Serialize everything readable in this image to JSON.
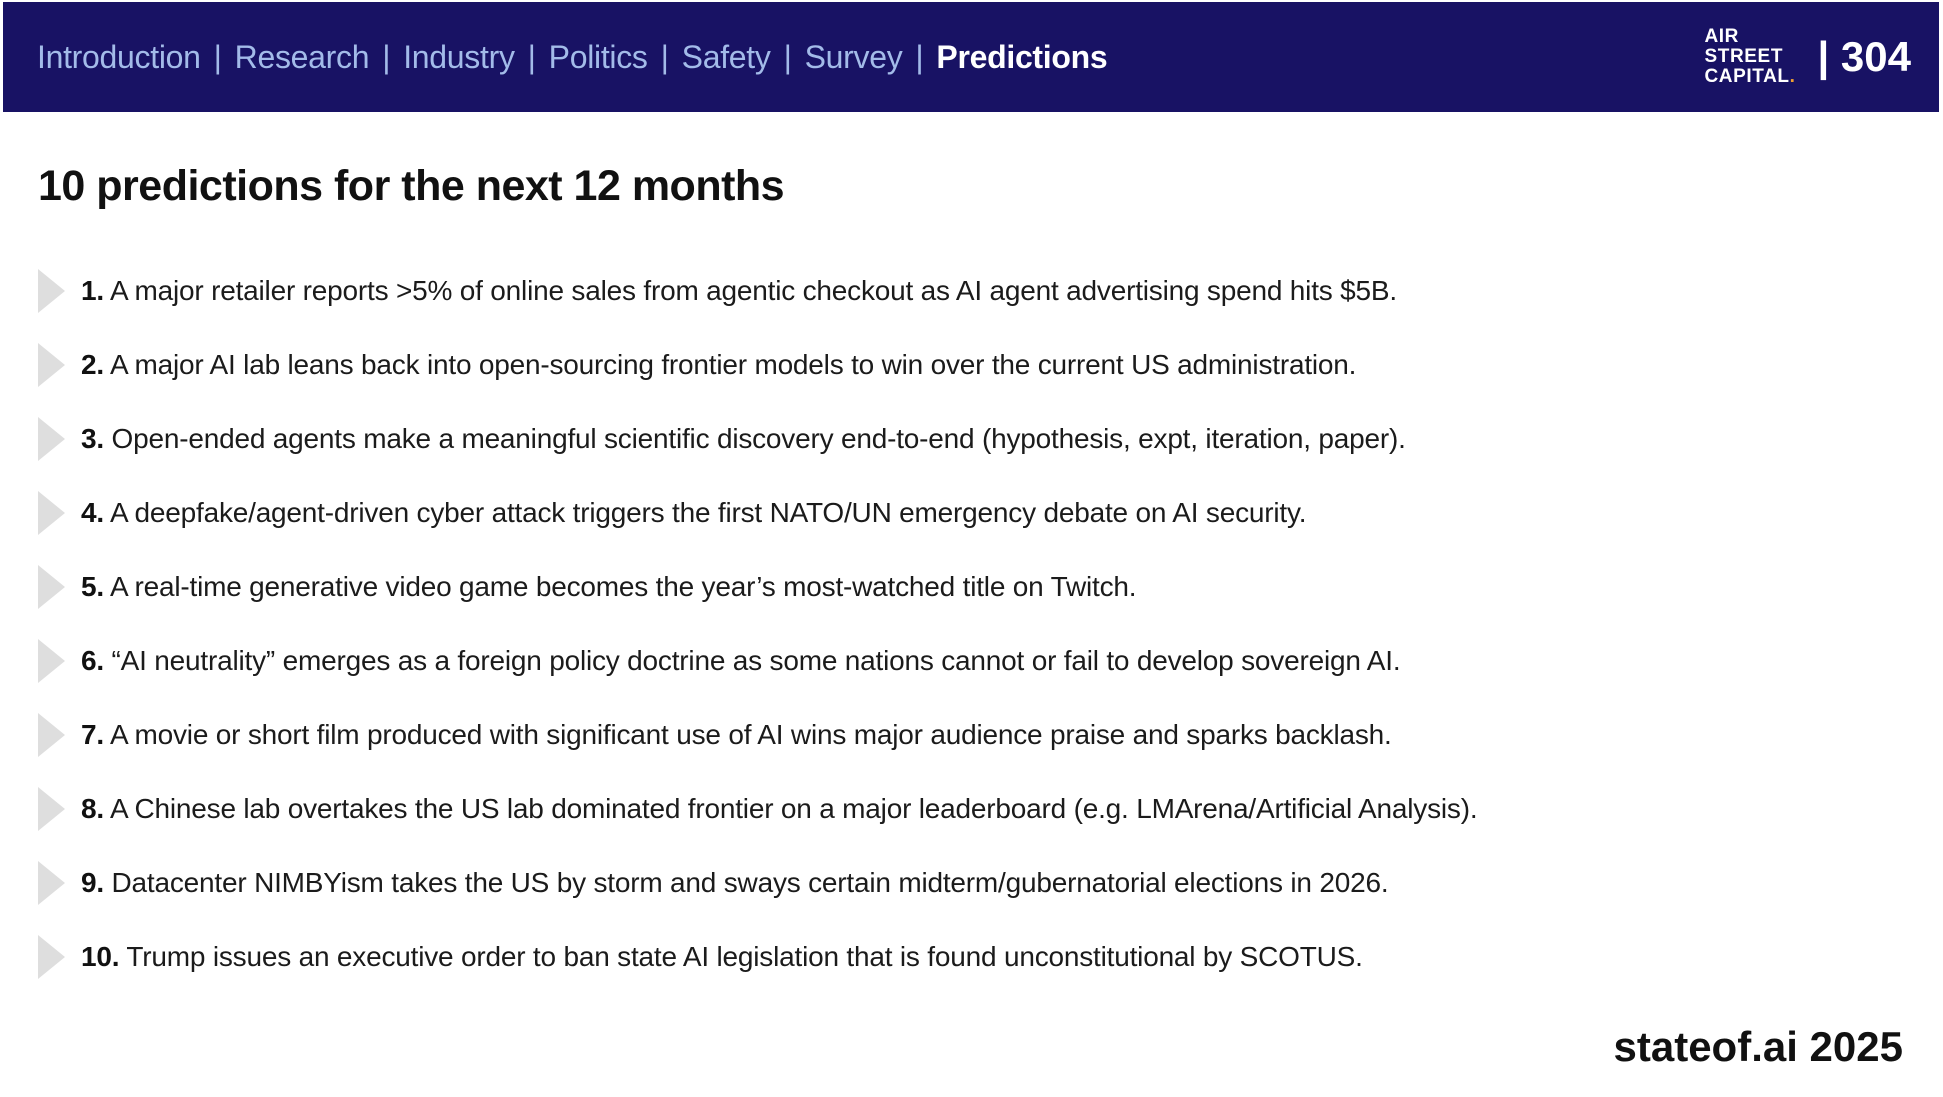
{
  "colors": {
    "navy": "#181264",
    "nav-blue": "#a3bbe9",
    "dot-orange": "#f0a030",
    "bullet-gray": "#dedede",
    "text-dark": "#1b1b1b"
  },
  "header": {
    "separator": "|",
    "nav": [
      {
        "label": "Introduction",
        "active": false
      },
      {
        "label": "Research",
        "active": false
      },
      {
        "label": "Industry",
        "active": false
      },
      {
        "label": "Politics",
        "active": false
      },
      {
        "label": "Safety",
        "active": false
      },
      {
        "label": "Survey",
        "active": false
      },
      {
        "label": "Predictions",
        "active": true
      }
    ],
    "logo_lines": [
      "AIR",
      "STREET",
      "CAPITAL"
    ],
    "logo_dot": ".",
    "page_number": "| 304"
  },
  "main": {
    "title": "10 predictions for the next 12 months",
    "predictions": [
      {
        "num": "1.",
        "text": "A major retailer reports >5% of online sales from agentic checkout as AI agent advertising spend hits $5B."
      },
      {
        "num": "2.",
        "text": "A major AI lab leans back into open-sourcing frontier models to win over the current US administration."
      },
      {
        "num": "3.",
        "text": "Open-ended agents make a meaningful scientific discovery end-to-end (hypothesis, expt, iteration, paper)."
      },
      {
        "num": "4.",
        "text": "A deepfake/agent-driven cyber attack triggers the first NATO/UN emergency debate on AI security."
      },
      {
        "num": "5.",
        "text": "A real-time generative video game becomes the year’s most-watched title on Twitch."
      },
      {
        "num": "6.",
        "text": "“AI neutrality” emerges as a foreign policy doctrine as some nations cannot or fail to develop sovereign AI."
      },
      {
        "num": "7.",
        "text": "A movie or short film produced with significant use of AI wins major audience praise and sparks backlash."
      },
      {
        "num": "8.",
        "text": "A Chinese lab overtakes the US lab dominated frontier on a major leaderboard (e.g. LMArena/Artificial Analysis)."
      },
      {
        "num": "9.",
        "text": "Datacenter NIMBYism takes the US by storm and sways certain midterm/gubernatorial elections in 2026."
      },
      {
        "num": "10.",
        "text": "Trump issues an executive order to ban state AI legislation that is found unconstitutional by SCOTUS."
      }
    ]
  },
  "footer": {
    "brand": "stateof.ai 2025"
  }
}
